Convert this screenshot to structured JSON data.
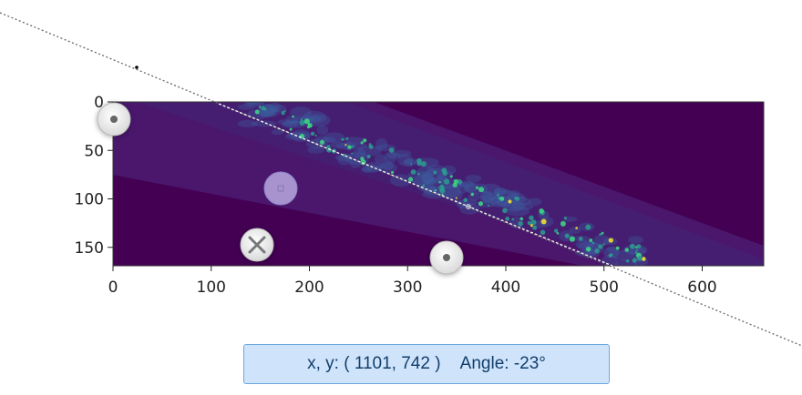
{
  "plot": {
    "x_ticks": [
      "0",
      "100",
      "200",
      "300",
      "400",
      "500",
      "600"
    ],
    "y_ticks": [
      "0",
      "50",
      "100",
      "150"
    ],
    "colors": {
      "background": "#440154",
      "band": "#4a1a6e",
      "signal": "#3b5fa0",
      "highlight": "#3ddc84",
      "peak": "#fde725"
    }
  },
  "readout": {
    "coords_label": "x, y: ( 1101, 742 )",
    "angle_label": "Angle: -23°"
  },
  "handles": {
    "start_icon": "dot-handle-icon",
    "end_icon": "dot-handle-icon",
    "center_icon": "center-handle-icon",
    "delete_icon": "close-icon"
  }
}
